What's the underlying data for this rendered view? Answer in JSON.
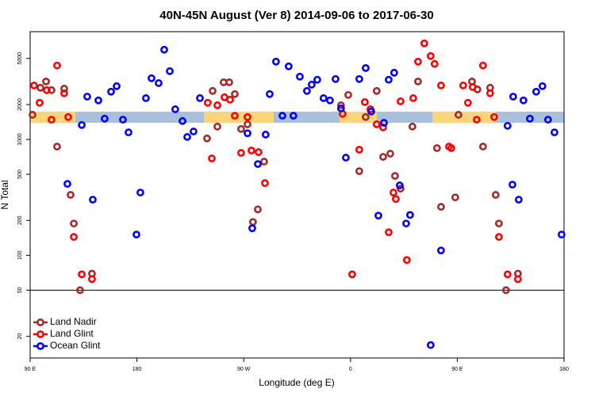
{
  "chart_data": {
    "type": "scatter",
    "title": "40N-45N August (Ver 8)   2014-09-06 to 2017-06-30",
    "x_label": "Longitude (deg E)",
    "y_label": "N Total",
    "xlim": [
      90,
      540
    ],
    "xticks": [
      {
        "value": 90,
        "label": "90 E"
      },
      {
        "value": 180,
        "label": "180"
      },
      {
        "value": 270,
        "label": "90 W"
      },
      {
        "value": 360,
        "label": "0"
      },
      {
        "value": 450,
        "label": "90 E"
      },
      {
        "value": 540,
        "label": "180"
      }
    ],
    "ylim": [
      13,
      8500
    ],
    "y_log": true,
    "yticks": [
      20,
      50,
      100,
      200,
      500,
      1000,
      2000,
      5000
    ],
    "reference_line": 50,
    "legend": "bottom-left",
    "series": [
      {
        "name": "Land Nadir",
        "color": "#a52a2a",
        "x": [
          92.0,
          98.7,
          103.4,
          108.0,
          112.7,
          118.7,
          124.1,
          126.8,
          132.1,
          142.1,
          239.1,
          243.8,
          247.8,
          253.1,
          257.8,
          262.5,
          267.8,
          273.2,
          277.8,
          281.9,
          287.2,
          352.0,
          358.1,
          367.4,
          372.8,
          382.1,
          387.5,
          393.5,
          397.5,
          402.2,
          412.2,
          416.9,
          432.9,
          436.3,
          448.3,
          451.0,
          462.4,
          467.0,
          471.7,
          477.7,
          482.4,
          485.1,
          491.1,
          501.1
        ],
        "values": [
          1630,
          2790,
          3160,
          2660,
          867,
          2740,
          332,
          188,
          50,
          69.5,
          1020,
          2620,
          1290,
          3110,
          3110,
          2460,
          1230,
          1350,
          194,
          249,
          643,
          1970,
          2420,
          532,
          1560,
          2620,
          707,
          753,
          484,
          376,
          1290,
          3160,
          841,
          262,
          316,
          1630,
          3160,
          2700,
          867,
          2790,
          332,
          188,
          50,
          69.5
        ]
      },
      {
        "name": "Land Glint",
        "color": "#ff0000",
        "x": [
          93.3,
          98.0,
          104.0,
          108.0,
          112.7,
          118.7,
          122.1,
          126.8,
          133.5,
          142.1,
          239.7,
          243.1,
          247.8,
          253.8,
          258.5,
          262.5,
          267.8,
          273.2,
          276.5,
          282.5,
          287.9,
          353.4,
          361.4,
          367.4,
          372.1,
          376.8,
          382.1,
          387.5,
          392.2,
          396.2,
          398.2,
          402.2,
          407.5,
          412.9,
          416.9,
          422.2,
          427.6,
          430.9,
          436.3,
          443.0,
          445.0,
          455.0,
          459.0,
          463.0,
          466.4,
          471.7,
          477.7,
          481.1,
          485.1,
          492.4,
          501.1
        ],
        "values": [
          2920,
          2070,
          2660,
          1480,
          4340,
          2500,
          1560,
          144,
          68.5,
          62.3,
          2070,
          685,
          1970,
          2310,
          2200,
          1600,
          765,
          1560,
          802,
          777,
          420,
          1660,
          68.5,
          815,
          2100,
          1820,
          1350,
          1270,
          158,
          348,
          306,
          2130,
          91,
          2270,
          4690,
          6740,
          5240,
          4480,
          2920,
          867,
          841,
          2920,
          2070,
          2830,
          1480,
          4340,
          2500,
          1560,
          144,
          68.5,
          62.3
        ]
      },
      {
        "name": "Ocean Glint",
        "color": "#0000ff",
        "x": [
          121.4,
          133.5,
          138.1,
          142.8,
          147.5,
          152.8,
          158.2,
          162.9,
          168.2,
          172.9,
          179.6,
          182.9,
          187.6,
          192.3,
          198.3,
          203.0,
          207.7,
          212.3,
          218.4,
          222.4,
          227.7,
          233.1,
          273.2,
          277.2,
          281.9,
          288.5,
          291.9,
          297.2,
          302.6,
          307.9,
          311.9,
          317.3,
          323.3,
          327.3,
          332.0,
          337.3,
          342.7,
          347.4,
          352.0,
          356.1,
          367.4,
          372.8,
          377.5,
          383.5,
          388.2,
          392.2,
          396.8,
          401.5,
          406.9,
          410.2,
          427.6,
          436.3,
          492.4,
          496.5,
          501.8,
          505.8,
          511.2,
          497.1,
          516.5,
          521.8,
          526.5,
          531.9,
          537.9
        ],
        "values": [
          413,
          1330,
          2340,
          302,
          2170,
          1510,
          2580,
          2880,
          1480,
          1150,
          151,
          348,
          2270,
          3370,
          3060,
          5940,
          3880,
          1820,
          1440,
          1050,
          1170,
          2270,
          1130,
          171,
          613,
          1100,
          2460,
          4690,
          1600,
          4270,
          1600,
          3480,
          2620,
          2970,
          3270,
          2270,
          2170,
          3320,
          1850,
          696,
          3320,
          4130,
          1740,
          220,
          1390,
          3270,
          3760,
          401,
          188,
          223,
          16.8,
          110,
          1310,
          407,
          302,
          2170,
          1510,
          2340,
          2580,
          2880,
          1480,
          1150,
          151
        ]
      }
    ]
  }
}
